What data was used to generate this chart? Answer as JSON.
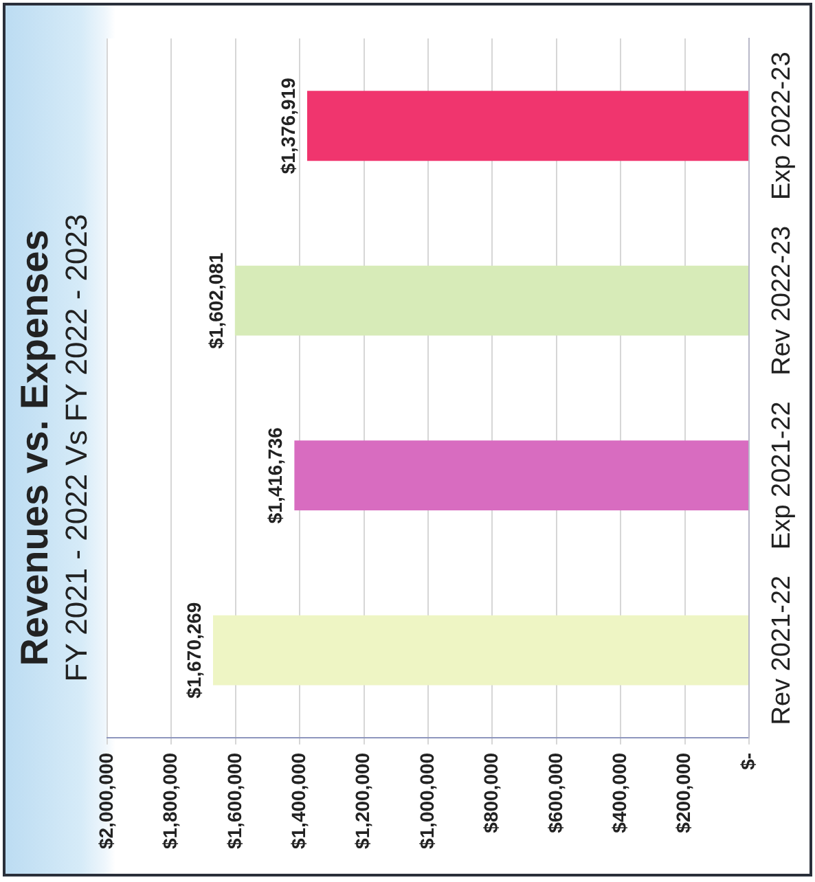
{
  "chart_data": {
    "type": "bar",
    "title": "Revenues vs. Expenses",
    "subtitle": "FY 2021 - 2022 Vs FY 2022 - 2023",
    "orientation": "horizontal",
    "categories": [
      "Exp 2022-23",
      "Rev 2022-23",
      "Exp 2021-22",
      "Rev 2021-22"
    ],
    "values": [
      1376919,
      1602081,
      1416736,
      1670269
    ],
    "colors": [
      "#f0356e",
      "#d7ebb8",
      "#d86cc0",
      "#eef5c4"
    ],
    "value_labels": [
      "$1,376,919",
      "$1,602,081",
      "$1,416,736",
      "$1,670,269"
    ],
    "xlim": [
      2000000,
      0
    ],
    "xticks": [
      {
        "value": 2000000,
        "label": "$2,000,000"
      },
      {
        "value": 1800000,
        "label": "$1,800,000"
      },
      {
        "value": 1600000,
        "label": "$1,600,000"
      },
      {
        "value": 1400000,
        "label": "$1,400,000"
      },
      {
        "value": 1200000,
        "label": "$1,200,000"
      },
      {
        "value": 1000000,
        "label": "$1,000,000"
      },
      {
        "value": 800000,
        "label": "$800,000"
      },
      {
        "value": 600000,
        "label": "$600,000"
      },
      {
        "value": 400000,
        "label": "$400,000"
      },
      {
        "value": 200000,
        "label": "$200,000"
      },
      {
        "value": 0,
        "label": "$-"
      }
    ],
    "grid": "x"
  }
}
